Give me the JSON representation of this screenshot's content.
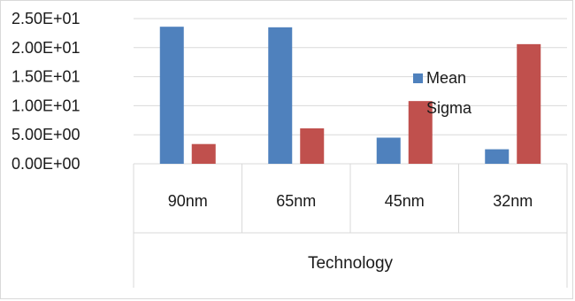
{
  "chart_data": {
    "type": "bar",
    "categories": [
      "90nm",
      "65nm",
      "45nm",
      "32nm"
    ],
    "series": [
      {
        "name": "Mean",
        "values": [
          23.6,
          23.5,
          4.5,
          2.5
        ],
        "color": "#4f81bd"
      },
      {
        "name": "Sigma",
        "values": [
          3.4,
          6.1,
          10.8,
          20.6
        ],
        "color": "#c0504d"
      }
    ],
    "ytick_labels": [
      "0.00E+00",
      "5.00E+00",
      "1.00E+01",
      "1.50E+01",
      "2.00E+01",
      "2.50E+01"
    ],
    "ylim": [
      0,
      25
    ],
    "ystep": 5,
    "xlabel": "Technology",
    "title": "",
    "ylabel": "",
    "grid": true,
    "legend_position": "right-inside"
  }
}
